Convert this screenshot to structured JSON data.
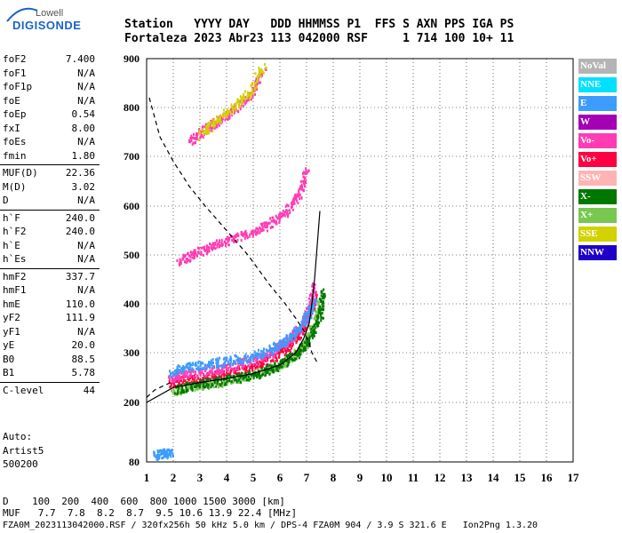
{
  "logo": {
    "top_text": "Lowell",
    "main_text": "DIGISONDE"
  },
  "header": {
    "line1": "Station   YYYY DAY   DDD HHMMSS P1  FFS S AXN PPS IGA PS",
    "line2": "Fortaleza 2023 Abr23 113 042000 RSF     1 714 100 10+ 11"
  },
  "params": [
    {
      "name": "foF2",
      "value": "7.400"
    },
    {
      "name": "foF1",
      "value": "N/A"
    },
    {
      "name": "foF1p",
      "value": "N/A"
    },
    {
      "name": "foE",
      "value": "N/A"
    },
    {
      "name": "foEp",
      "value": "0.54"
    },
    {
      "name": "fxI",
      "value": "8.00"
    },
    {
      "name": "foEs",
      "value": "N/A"
    },
    {
      "name": "fmin",
      "value": "1.80"
    },
    {
      "name": "MUF(D)",
      "value": "22.36"
    },
    {
      "name": "M(D)",
      "value": "3.02"
    },
    {
      "name": "D",
      "value": "N/A"
    },
    {
      "name": "h`F",
      "value": "240.0"
    },
    {
      "name": "h`F2",
      "value": "240.0"
    },
    {
      "name": "h`E",
      "value": "N/A"
    },
    {
      "name": "h`Es",
      "value": "N/A"
    },
    {
      "name": "hmF2",
      "value": "337.7"
    },
    {
      "name": "hmF1",
      "value": "N/A"
    },
    {
      "name": "hmE",
      "value": "110.0"
    },
    {
      "name": "yF2",
      "value": "111.9"
    },
    {
      "name": "yF1",
      "value": "N/A"
    },
    {
      "name": "yE",
      "value": "20.0"
    },
    {
      "name": "B0",
      "value": "88.5"
    },
    {
      "name": "B1",
      "value": "5.78"
    },
    {
      "name": "C-level",
      "value": "44"
    }
  ],
  "auto": {
    "line1": "Auto:",
    "line2": "Artist5",
    "line3": "500200"
  },
  "legend": [
    {
      "label": "NoVal",
      "color": "#b4b4b4"
    },
    {
      "label": "NNE",
      "color": "#00e0ff"
    },
    {
      "label": "E",
      "color": "#3c9cff"
    },
    {
      "label": "W",
      "color": "#a400b4"
    },
    {
      "label": "Vo-",
      "color": "#ff3cb4"
    },
    {
      "label": "Vo+",
      "color": "#ff0040"
    },
    {
      "label": "SSW",
      "color": "#ffb4b4"
    },
    {
      "label": "X-",
      "color": "#007800"
    },
    {
      "label": "X+",
      "color": "#78c850"
    },
    {
      "label": "SSE",
      "color": "#d2d200"
    },
    {
      "label": "NNW",
      "color": "#1e00c8"
    }
  ],
  "footer": {
    "d_line": "D    100  200  400  600  800 1000 1500 3000 [km]",
    "muf_line": "MUF   7.7  7.8  8.2  8.7  9.5 10.6 13.9 22.4 [MHz]",
    "file_line": "FZA0M_2023113042000.RSF / 320fx256h 50 kHz 5.0 km / DPS-4 FZA0M 904 / 3.9 S 321.6 E   Ion2Png 1.3.20"
  },
  "chart_data": {
    "type": "scatter",
    "xlim": [
      1,
      17
    ],
    "ylim": [
      80,
      900
    ],
    "x_ticks": [
      1,
      2,
      3,
      4,
      5,
      6,
      7,
      8,
      9,
      10,
      11,
      12,
      13,
      14,
      15,
      16,
      17
    ],
    "y_ticks": [
      80,
      200,
      300,
      400,
      500,
      600,
      700,
      800,
      900
    ],
    "grid": true,
    "xlabel": "",
    "ylabel": "",
    "series": [
      {
        "kind": "trace",
        "color": "#ff0040",
        "x": [
          1.9,
          2.3,
          3,
          3.8,
          4.5,
          5.2,
          5.8,
          6.3,
          6.8,
          7.1,
          7.3
        ],
        "y": [
          240,
          245,
          250,
          258,
          265,
          278,
          295,
          315,
          345,
          380,
          420
        ]
      },
      {
        "kind": "trace",
        "color": "#ff3cb4",
        "x": [
          1.9,
          2.3,
          3,
          3.8,
          4.5,
          5.2,
          5.8,
          6.3,
          6.8,
          7.1,
          7.3
        ],
        "y": [
          250,
          258,
          262,
          270,
          278,
          290,
          305,
          328,
          355,
          395,
          440
        ]
      },
      {
        "kind": "trace",
        "color": "#3c9cff",
        "x": [
          1.9,
          2.5,
          3.2,
          4,
          4.8,
          5.5,
          6.1,
          6.6,
          7,
          7.3
        ],
        "y": [
          262,
          272,
          278,
          285,
          292,
          305,
          322,
          345,
          375,
          410
        ]
      },
      {
        "kind": "trace",
        "color": "#78c850",
        "x": [
          2,
          2.6,
          3.4,
          4.3,
          5.1,
          5.8,
          6.4,
          6.9,
          7.3,
          7.5
        ],
        "y": [
          225,
          232,
          240,
          248,
          258,
          272,
          290,
          318,
          360,
          410
        ]
      },
      {
        "kind": "trace",
        "color": "#007800",
        "x": [
          2.1,
          2.8,
          3.6,
          4.5,
          5.3,
          6,
          6.6,
          7.1,
          7.5,
          7.6
        ],
        "y": [
          228,
          236,
          244,
          252,
          262,
          278,
          298,
          330,
          380,
          430
        ]
      },
      {
        "kind": "trace",
        "color": "#ff3cb4",
        "x": [
          2.2,
          2.8,
          3.5,
          4.2,
          5,
          5.6,
          6.2,
          6.7,
          7
        ],
        "y": [
          490,
          505,
          520,
          535,
          550,
          565,
          590,
          625,
          680
        ]
      },
      {
        "kind": "trace",
        "color": "#ff3cb4",
        "x": [
          2.6,
          3.1,
          3.7,
          4.3,
          4.9,
          5.4
        ],
        "y": [
          730,
          755,
          775,
          800,
          830,
          880
        ]
      },
      {
        "kind": "trace",
        "color": "#d2d200",
        "x": [
          3,
          3.6,
          4.2,
          4.8,
          5.4
        ],
        "y": [
          745,
          775,
          800,
          830,
          890
        ]
      },
      {
        "kind": "trace",
        "color": "#3c9cff",
        "x": [
          1.3,
          1.6,
          1.9
        ],
        "y": [
          96,
          98,
          100
        ]
      }
    ],
    "curves": [
      {
        "name": "profile",
        "style": "solid",
        "x": [
          1,
          2,
          3,
          4,
          5,
          6,
          6.6,
          6.9,
          7.1,
          7.2,
          7.3,
          7.4,
          7.5
        ],
        "y": [
          200,
          230,
          240,
          248,
          258,
          275,
          300,
          330,
          360,
          400,
          450,
          520,
          590
        ]
      },
      {
        "name": "maximum",
        "style": "dashed",
        "x": [
          1.1,
          1.5,
          2,
          2.6,
          3.2,
          4,
          4.8,
          5.6,
          6.2,
          6.6,
          6.9,
          7.1,
          7.2,
          7.4
        ],
        "y": [
          820,
          740,
          690,
          640,
          600,
          550,
          500,
          440,
          400,
          370,
          345,
          320,
          300,
          280
        ]
      },
      {
        "name": "bottom",
        "style": "dashed",
        "x": [
          1,
          1.3,
          1.7,
          2
        ],
        "y": [
          210,
          225,
          235,
          242
        ]
      }
    ]
  }
}
